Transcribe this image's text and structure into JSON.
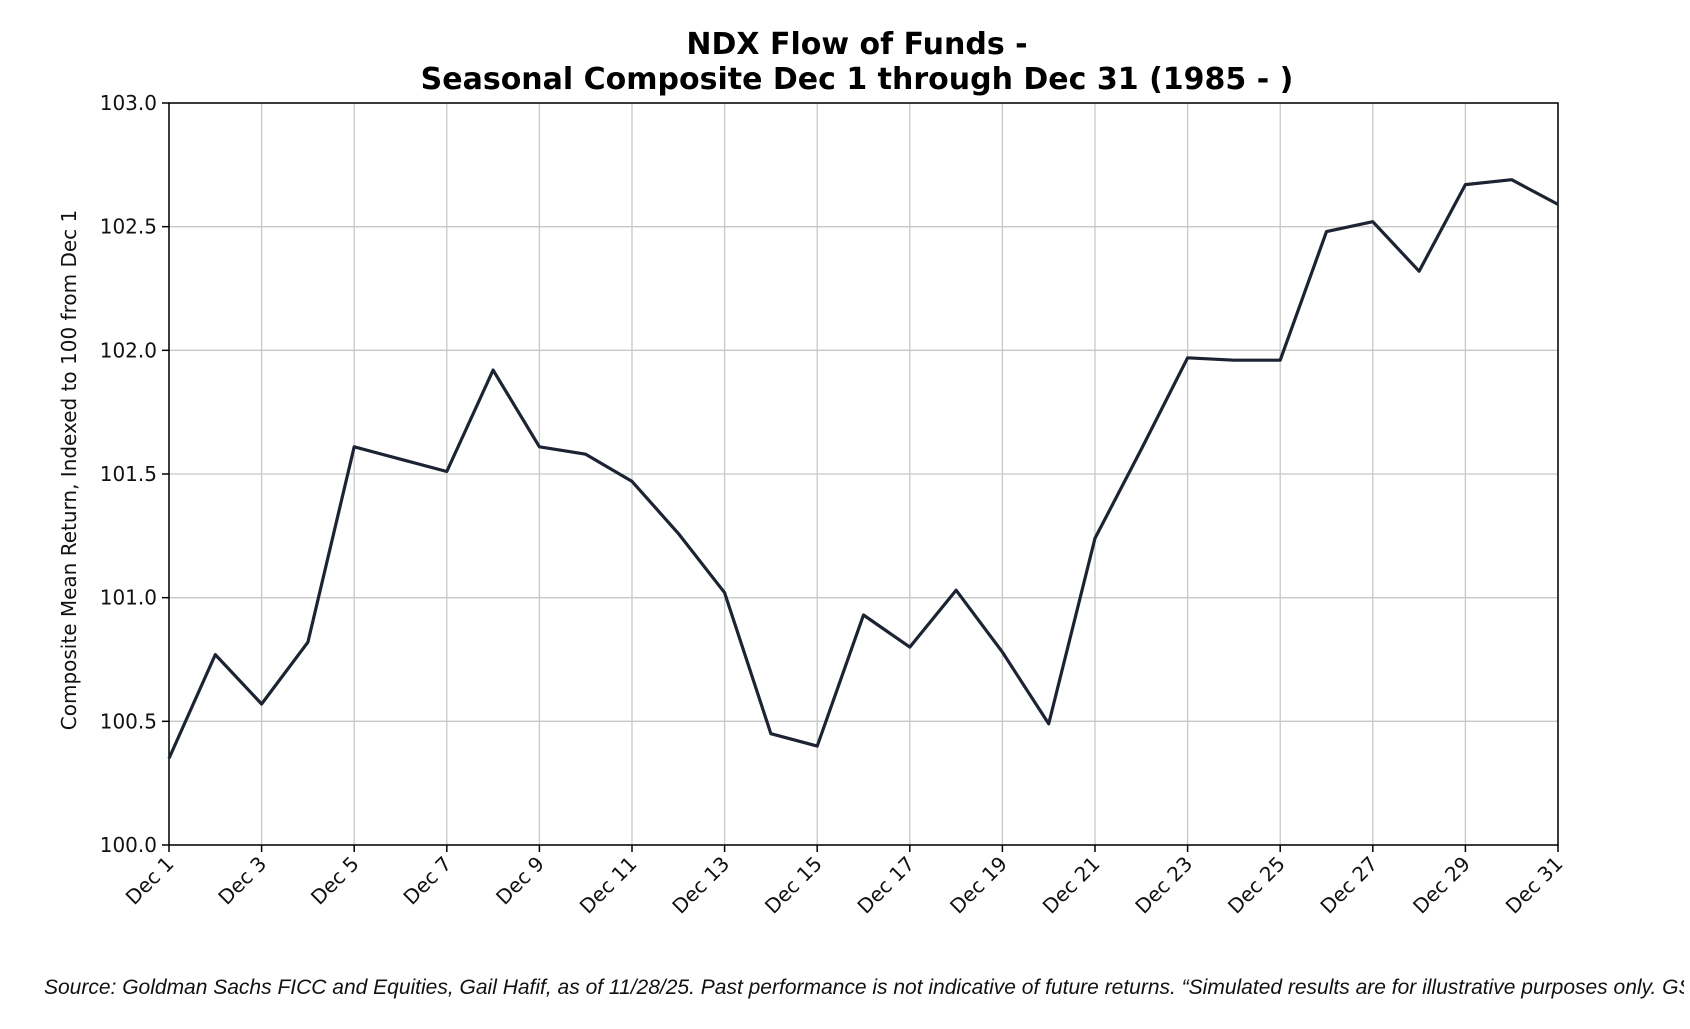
{
  "chart_data": {
    "type": "line",
    "title": [
      "NDX Flow of Funds -",
      "Seasonal Composite Dec 1 through Dec 31 (1985 - )"
    ],
    "ylabel": "Composite Mean Return, Indexed to 100 from Dec 1",
    "xlabel": "",
    "ylim": [
      100.0,
      103.0
    ],
    "yticks": [
      "100.0",
      "100.5",
      "101.0",
      "101.5",
      "102.0",
      "102.5",
      "103.0"
    ],
    "xticks": [
      "Dec 1",
      "Dec 3",
      "Dec 5",
      "Dec 7",
      "Dec 9",
      "Dec 11",
      "Dec 13",
      "Dec 15",
      "Dec 17",
      "Dec 19",
      "Dec 21",
      "Dec 23",
      "Dec 25",
      "Dec 27",
      "Dec 29",
      "Dec 31"
    ],
    "grid": true,
    "line_color": "#1c2333",
    "series": [
      {
        "x": [
          "Dec 1",
          "Dec 2",
          "Dec 3",
          "Dec 4",
          "Dec 5",
          "Dec 6",
          "Dec 7",
          "Dec 8",
          "Dec 9",
          "Dec 10",
          "Dec 11",
          "Dec 12",
          "Dec 13",
          "Dec 14",
          "Dec 15",
          "Dec 16",
          "Dec 17",
          "Dec 18",
          "Dec 19",
          "Dec 20",
          "Dec 21",
          "Dec 22",
          "Dec 23",
          "Dec 24",
          "Dec 25",
          "Dec 26",
          "Dec 27",
          "Dec 28",
          "Dec 29",
          "Dec 30",
          "Dec 31"
        ],
        "values": [
          100.35,
          100.77,
          100.57,
          100.82,
          101.61,
          101.56,
          101.51,
          101.92,
          101.61,
          101.58,
          101.47,
          101.26,
          101.02,
          100.45,
          100.4,
          100.93,
          100.8,
          101.03,
          100.78,
          100.49,
          101.24,
          101.6,
          101.97,
          101.96,
          101.96,
          102.48,
          102.52,
          102.32,
          102.67,
          102.69,
          102.59
        ]
      }
    ]
  },
  "footer": {
    "source": "Source: Goldman Sachs FICC and Equities, Gail Hafif, as of 11/28/25. Past performance is not indicative of future returns. “Simulated results are for illustrative purposes only. GS p"
  }
}
